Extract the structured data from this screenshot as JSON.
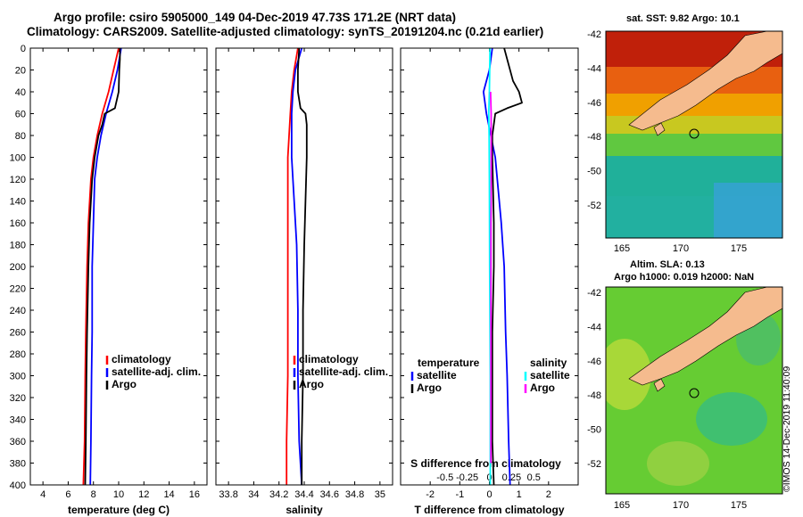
{
  "header": {
    "line1": "Argo profile: csiro 5905000_149 04-Dec-2019 47.73S 171.2E (NRT data)",
    "line2": "Climatology: CARS2009. Satellite-adjusted climatology: synTS_20191204.nc (0.21d earlier)"
  },
  "maps": {
    "sst_title": "sat. SST: 9.82 Argo: 10.1",
    "sla_title_1": "Altim. SLA: 0.13",
    "sla_title_2": "Argo h1000: 0.019 h2000: NaN",
    "lon_ticks": [
      "165",
      "170",
      "175"
    ],
    "lat_ticks": [
      "-42",
      "-44",
      "-46",
      "-48",
      "-50",
      "-52"
    ],
    "colors": {
      "land": "#f5bb8e",
      "sst_warm": "#c0200a",
      "sst_mid": "#f0a000",
      "sst_cool": "#22b0a0",
      "sla_base": "#66cc33"
    }
  },
  "credit": "©IMOS 14-Dec-2019 11:40:09",
  "chart_data": [
    {
      "type": "line",
      "xlabel": "temperature (deg C)",
      "ylim": [
        400,
        0
      ],
      "xlim": [
        3,
        17
      ],
      "xticks": [
        "4",
        "6",
        "8",
        "10",
        "12",
        "14",
        "16"
      ],
      "xtick_values": [
        4,
        6,
        8,
        10,
        12,
        14,
        16
      ],
      "yticks": [
        "0",
        "20",
        "40",
        "60",
        "80",
        "100",
        "120",
        "140",
        "160",
        "180",
        "200",
        "220",
        "240",
        "260",
        "280",
        "300",
        "320",
        "340",
        "360",
        "380",
        "400"
      ],
      "legend": [
        "climatology",
        "satellite-adj. clim.",
        "Argo"
      ],
      "series": [
        {
          "name": "climatology",
          "color": "#ff0000",
          "depth": [
            0,
            20,
            40,
            60,
            80,
            100,
            120,
            160,
            200,
            260,
            300,
            360,
            400
          ],
          "values": [
            10.0,
            9.6,
            9.2,
            8.7,
            8.3,
            8.0,
            7.8,
            7.6,
            7.5,
            7.4,
            7.35,
            7.3,
            7.2
          ]
        },
        {
          "name": "satellite-adj. clim.",
          "color": "#0000ff",
          "depth": [
            0,
            20,
            40,
            60,
            80,
            100,
            120,
            160,
            200,
            260,
            300,
            360,
            400
          ],
          "values": [
            10.2,
            9.9,
            9.5,
            9.0,
            8.6,
            8.3,
            8.1,
            8.0,
            7.9,
            7.9,
            7.85,
            7.8,
            7.75
          ]
        },
        {
          "name": "Argo",
          "color": "#000000",
          "depth": [
            0,
            10,
            20,
            40,
            55,
            60,
            70,
            80,
            100,
            120,
            160,
            200,
            260,
            300,
            360,
            400
          ],
          "values": [
            10.1,
            10.1,
            10.05,
            10.0,
            9.7,
            8.9,
            8.7,
            8.4,
            8.1,
            7.9,
            7.7,
            7.6,
            7.5,
            7.45,
            7.4,
            7.35
          ]
        }
      ]
    },
    {
      "type": "line",
      "xlabel": "salinity",
      "ylim": [
        400,
        0
      ],
      "xlim": [
        33.7,
        35.1
      ],
      "xticks": [
        "33.8",
        "34",
        "34.2",
        "34.4",
        "34.6",
        "34.8",
        "35"
      ],
      "xtick_values": [
        33.8,
        34.0,
        34.2,
        34.4,
        34.6,
        34.8,
        35.0
      ],
      "legend": [
        "climatology",
        "satellite-adj. clim.",
        "Argo"
      ],
      "series": [
        {
          "name": "climatology",
          "color": "#ff0000",
          "depth": [
            0,
            20,
            40,
            60,
            80,
            100,
            140,
            180,
            240,
            300,
            360,
            400
          ],
          "values": [
            34.35,
            34.32,
            34.3,
            34.29,
            34.28,
            34.27,
            34.27,
            34.27,
            34.27,
            34.27,
            34.26,
            34.26
          ]
        },
        {
          "name": "satellite-adj. clim.",
          "color": "#0000ff",
          "depth": [
            0,
            20,
            40,
            60,
            80,
            100,
            140,
            180,
            240,
            300,
            360,
            400
          ],
          "values": [
            34.38,
            34.33,
            34.31,
            34.3,
            34.3,
            34.3,
            34.32,
            34.34,
            34.35,
            34.35,
            34.36,
            34.38
          ]
        },
        {
          "name": "Argo",
          "color": "#000000",
          "depth": [
            0,
            20,
            40,
            55,
            60,
            70,
            80,
            100,
            140,
            180,
            240,
            300,
            360,
            400
          ],
          "values": [
            34.36,
            34.35,
            34.35,
            34.37,
            34.41,
            34.42,
            34.42,
            34.42,
            34.41,
            34.4,
            34.39,
            34.39,
            34.38,
            34.38
          ]
        }
      ]
    },
    {
      "type": "line",
      "xlabel": "T difference from climatology",
      "xlabel_top": "S difference from climatology",
      "ylim": [
        400,
        0
      ],
      "xlim": [
        -3,
        3
      ],
      "xticks": [
        "-2",
        "-1",
        "0",
        "1",
        "2"
      ],
      "xtick_values": [
        -2,
        -1,
        0,
        1,
        2
      ],
      "xticks_top": [
        "-0.5",
        "-0.25",
        "0",
        "0.25",
        "0.5"
      ],
      "xtick_values_top": [
        -0.5,
        -0.25,
        0,
        0.25,
        0.5
      ],
      "legend_temperature": {
        "title": "temperature",
        "entries": [
          "satellite",
          "Argo"
        ]
      },
      "legend_salinity": {
        "title": "salinity",
        "entries": [
          "satellite",
          "Argo"
        ]
      },
      "series": [
        {
          "name": "temperature satellite",
          "color": "#0000ff",
          "depth": [
            0,
            20,
            40,
            60,
            100,
            160,
            200,
            260,
            300,
            360,
            400
          ],
          "values": [
            0.1,
            0.0,
            -0.2,
            -0.1,
            0.2,
            0.4,
            0.5,
            0.55,
            0.6,
            0.65,
            0.7
          ]
        },
        {
          "name": "temperature Argo",
          "color": "#000000",
          "depth": [
            0,
            10,
            30,
            40,
            50,
            55,
            60,
            80,
            100,
            160,
            200,
            260,
            300,
            360,
            400
          ],
          "values": [
            0.5,
            0.6,
            0.8,
            1.0,
            1.1,
            0.6,
            0.2,
            0.1,
            0.1,
            0.15,
            0.15,
            0.1,
            0.1,
            0.1,
            0.15
          ]
        },
        {
          "name": "salinity satellite",
          "color": "#00ffff",
          "depth": [
            0,
            40,
            60,
            80,
            120,
            200,
            300,
            400
          ],
          "values": [
            0.02,
            0.0,
            -0.02,
            -0.01,
            0.0,
            0.01,
            0.03,
            0.03
          ]
        },
        {
          "name": "salinity Argo",
          "color": "#ff00ff",
          "depth": [
            40,
            60,
            100,
            140,
            160,
            200,
            260,
            300,
            340,
            380
          ],
          "values": [
            0.04,
            0.06,
            0.06,
            0.06,
            0.05,
            0.05,
            0.05,
            0.05,
            0.05,
            0.05
          ]
        }
      ]
    }
  ]
}
